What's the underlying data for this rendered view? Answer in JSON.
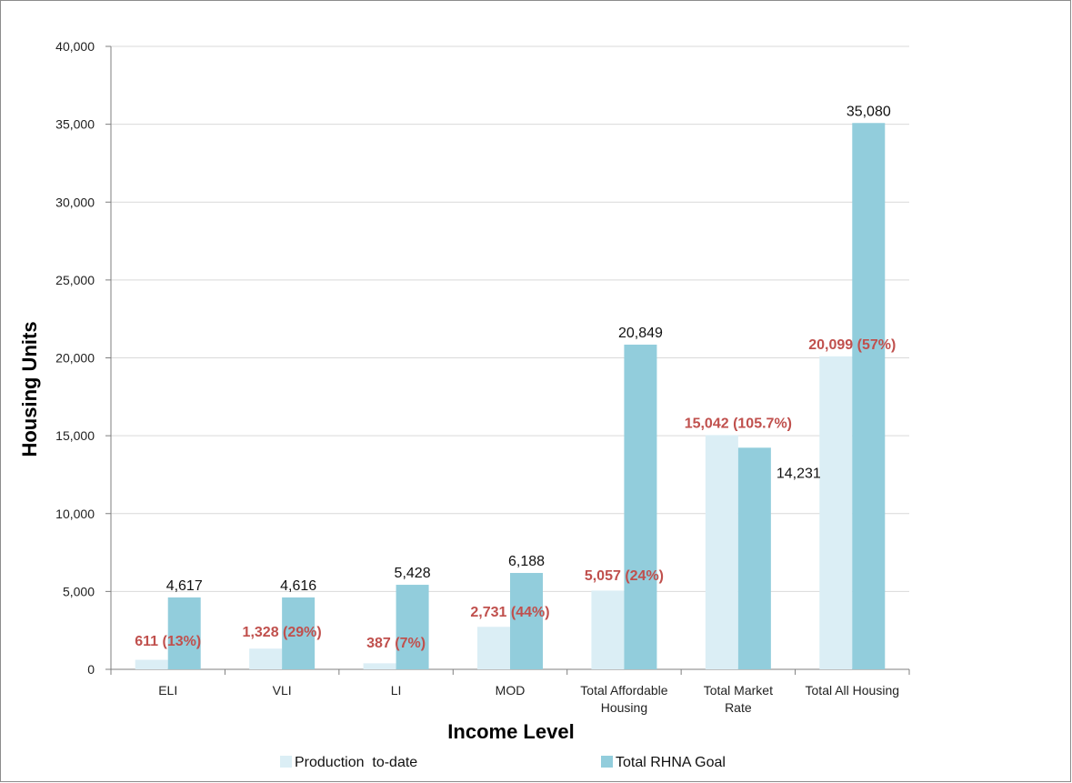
{
  "chart_data": {
    "type": "bar",
    "title": "",
    "xlabel": "Income Level",
    "ylabel": "Housing Units",
    "ylim": [
      0,
      40000
    ],
    "yticks": [
      0,
      5000,
      10000,
      15000,
      20000,
      25000,
      30000,
      35000,
      40000
    ],
    "ytick_labels": [
      "0",
      "5,000",
      "10,000",
      "15,000",
      "20,000",
      "25,000",
      "30,000",
      "35,000",
      "40,000"
    ],
    "categories": [
      [
        "ELI"
      ],
      [
        "VLI"
      ],
      [
        "LI"
      ],
      [
        "MOD"
      ],
      [
        "Total Affordable",
        "Housing"
      ],
      [
        "Total Market",
        "Rate"
      ],
      [
        "Total All Housing"
      ]
    ],
    "series": [
      {
        "name": "Production  to-date",
        "color": "#dbeef5",
        "values": [
          611,
          1328,
          387,
          2731,
          5057,
          15042,
          20099
        ],
        "labels": [
          "611 (13%)",
          "1,328 (29%)",
          "387 (7%)",
          "2,731 (44%)",
          "5,057 (24%)",
          "15,042 (105.7%)",
          "20,099 (57%)"
        ],
        "label_color": "#c0504d"
      },
      {
        "name": "Total RHNA Goal",
        "color": "#92cddc",
        "values": [
          4617,
          4616,
          5428,
          6188,
          20849,
          14231,
          35080
        ],
        "labels": [
          "4,617",
          "4,616",
          "5,428",
          "6,188",
          "20,849",
          "14,231",
          "35,080"
        ],
        "label_color": "#111111"
      }
    ],
    "grid": true,
    "legend_position": "bottom"
  }
}
